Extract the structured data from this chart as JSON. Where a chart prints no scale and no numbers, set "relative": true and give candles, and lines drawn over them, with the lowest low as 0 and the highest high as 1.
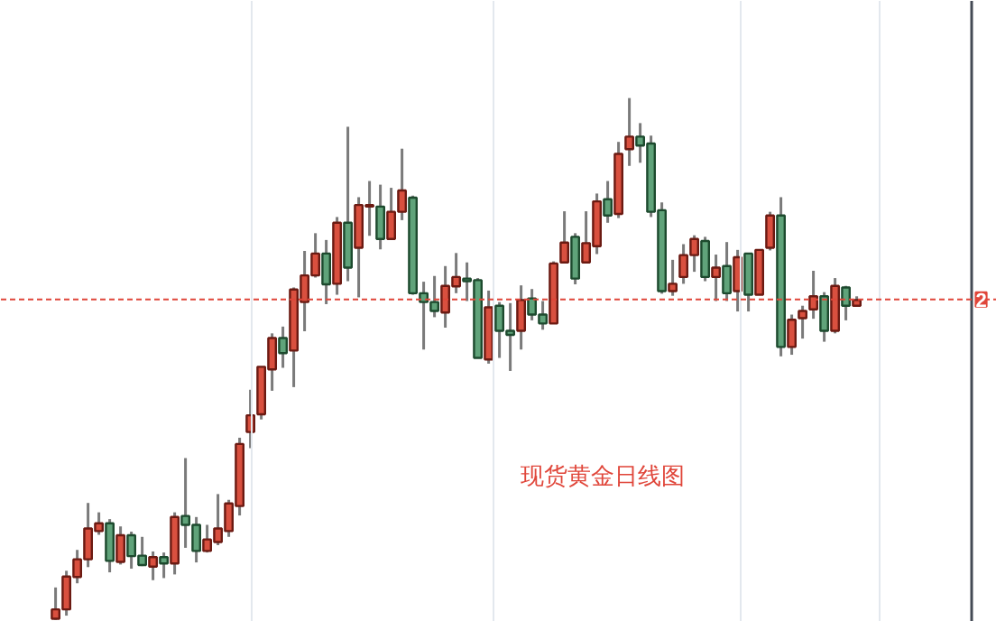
{
  "chart_data": {
    "type": "candlestick",
    "relative": true,
    "grid": "x",
    "categories": [
      null,
      null,
      null,
      null,
      null,
      null,
      null,
      null,
      null,
      null,
      null,
      null,
      null,
      null,
      null,
      null,
      null,
      null,
      null,
      null,
      null,
      null,
      null,
      null,
      null,
      null,
      null,
      null,
      null,
      null,
      null,
      null,
      null,
      null,
      null,
      null,
      null,
      null,
      null,
      null,
      null,
      null,
      null,
      null,
      null,
      null,
      null,
      null,
      null,
      null,
      null,
      null,
      null,
      null,
      null,
      null,
      null,
      null,
      null,
      null,
      null,
      null,
      null,
      null,
      null,
      null,
      null,
      null,
      null,
      null,
      null,
      null,
      null,
      null,
      null
    ],
    "ohlc": [
      [
        0.002,
        0.062,
        0.0,
        0.02
      ],
      [
        0.02,
        0.094,
        0.008,
        0.083
      ],
      [
        0.082,
        0.134,
        0.07,
        0.116
      ],
      [
        0.116,
        0.224,
        0.101,
        0.175
      ],
      [
        0.17,
        0.206,
        0.163,
        0.185
      ],
      [
        0.185,
        0.193,
        0.091,
        0.113
      ],
      [
        0.111,
        0.179,
        0.106,
        0.162
      ],
      [
        0.162,
        0.169,
        0.098,
        0.122
      ],
      [
        0.123,
        0.159,
        0.103,
        0.105
      ],
      [
        0.102,
        0.131,
        0.076,
        0.12
      ],
      [
        0.12,
        0.129,
        0.08,
        0.108
      ],
      [
        0.108,
        0.206,
        0.087,
        0.197
      ],
      [
        0.199,
        0.31,
        0.138,
        0.182
      ],
      [
        0.182,
        0.197,
        0.11,
        0.132
      ],
      [
        0.132,
        0.182,
        0.129,
        0.154
      ],
      [
        0.149,
        0.241,
        0.143,
        0.175
      ],
      [
        0.17,
        0.23,
        0.159,
        0.223
      ],
      [
        0.218,
        0.349,
        0.2,
        0.337
      ],
      [
        0.36,
        0.441,
        0.329,
        0.392
      ],
      [
        0.394,
        0.485,
        0.384,
        0.485
      ],
      [
        0.48,
        0.549,
        0.439,
        0.54
      ],
      [
        0.54,
        0.562,
        0.483,
        0.511
      ],
      [
        0.516,
        0.637,
        0.446,
        0.633
      ],
      [
        0.609,
        0.707,
        0.553,
        0.66
      ],
      [
        0.66,
        0.741,
        0.656,
        0.702
      ],
      [
        0.702,
        0.728,
        0.605,
        0.643
      ],
      [
        0.644,
        0.772,
        0.623,
        0.761
      ],
      [
        0.761,
        0.945,
        0.649,
        0.675
      ],
      [
        0.713,
        0.81,
        0.618,
        0.795
      ],
      [
        0.792,
        0.841,
        0.736,
        0.795
      ],
      [
        0.792,
        0.834,
        0.71,
        0.73
      ],
      [
        0.73,
        0.828,
        0.729,
        0.782
      ],
      [
        0.782,
        0.903,
        0.766,
        0.823
      ],
      [
        0.809,
        0.813,
        0.623,
        0.626
      ],
      [
        0.626,
        0.648,
        0.518,
        0.609
      ],
      [
        0.609,
        0.659,
        0.58,
        0.592
      ],
      [
        0.589,
        0.678,
        0.56,
        0.64
      ],
      [
        0.639,
        0.703,
        0.626,
        0.657
      ],
      [
        0.654,
        0.685,
        0.611,
        0.649
      ],
      [
        0.651,
        0.655,
        0.502,
        0.502
      ],
      [
        0.499,
        0.631,
        0.491,
        0.599
      ],
      [
        0.602,
        0.609,
        0.502,
        0.554
      ],
      [
        0.554,
        0.607,
        0.477,
        0.546
      ],
      [
        0.554,
        0.641,
        0.518,
        0.613
      ],
      [
        0.616,
        0.634,
        0.574,
        0.585
      ],
      [
        0.585,
        0.611,
        0.556,
        0.568
      ],
      [
        0.568,
        0.687,
        0.568,
        0.683
      ],
      [
        0.685,
        0.783,
        0.685,
        0.723
      ],
      [
        0.734,
        0.741,
        0.643,
        0.654
      ],
      [
        0.685,
        0.783,
        0.685,
        0.722
      ],
      [
        0.716,
        0.817,
        0.701,
        0.802
      ],
      [
        0.806,
        0.841,
        0.761,
        0.775
      ],
      [
        0.778,
        0.916,
        0.77,
        0.893
      ],
      [
        0.902,
        1.0,
        0.87,
        0.926
      ],
      [
        0.926,
        0.952,
        0.876,
        0.909
      ],
      [
        0.913,
        0.928,
        0.772,
        0.782
      ],
      [
        0.785,
        0.8,
        0.625,
        0.63
      ],
      [
        0.63,
        0.69,
        0.621,
        0.644
      ],
      [
        0.657,
        0.72,
        0.644,
        0.699
      ],
      [
        0.699,
        0.737,
        0.667,
        0.73
      ],
      [
        0.726,
        0.734,
        0.649,
        0.657
      ],
      [
        0.657,
        0.7,
        0.611,
        0.675
      ],
      [
        0.678,
        0.724,
        0.611,
        0.626
      ],
      [
        0.63,
        0.709,
        0.591,
        0.695
      ],
      [
        0.702,
        0.703,
        0.591,
        0.623
      ],
      [
        0.623,
        0.709,
        0.623,
        0.709
      ],
      [
        0.713,
        0.782,
        0.708,
        0.775
      ],
      [
        0.775,
        0.81,
        0.505,
        0.523
      ],
      [
        0.523,
        0.585,
        0.508,
        0.575
      ],
      [
        0.578,
        0.602,
        0.539,
        0.592
      ],
      [
        0.595,
        0.669,
        0.577,
        0.62
      ],
      [
        0.62,
        0.628,
        0.533,
        0.554
      ],
      [
        0.554,
        0.655,
        0.549,
        0.64
      ],
      [
        0.637,
        0.64,
        0.574,
        0.602
      ],
      [
        0.602,
        0.62,
        0.602,
        0.613
      ]
    ],
    "ref_lines": [
      {
        "axis": "y",
        "value": 0.614,
        "color": "#e0463a",
        "line_style": "dashed"
      }
    ],
    "annotations": [
      "现货黄金日线图",
      {
        "text": "2",
        "y": 0.614
      }
    ]
  }
}
